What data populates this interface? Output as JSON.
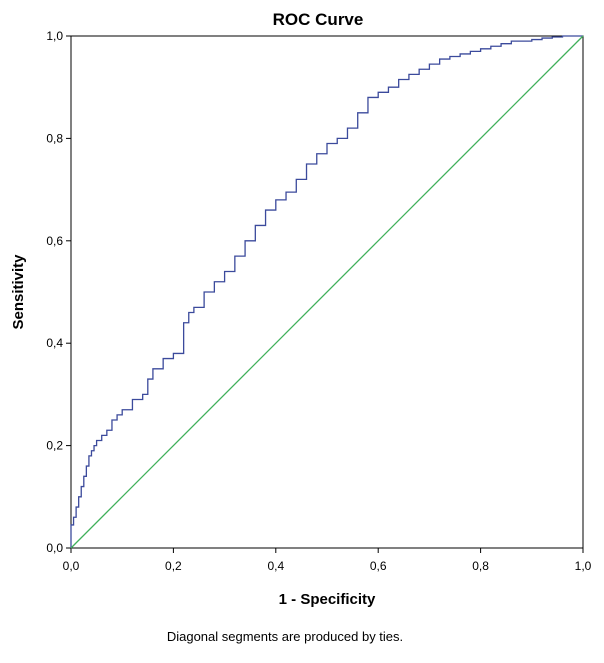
{
  "chart_data": {
    "type": "line",
    "title": "ROC Curve",
    "xlabel": "1 - Specificity",
    "ylabel": "Sensitivity",
    "xlim": [
      0,
      1
    ],
    "ylim": [
      0,
      1
    ],
    "x_ticks": [
      "0,0",
      "0,2",
      "0,4",
      "0,6",
      "0,8",
      "1,0"
    ],
    "y_ticks": [
      "0,0",
      "0,2",
      "0,4",
      "0,6",
      "0,8",
      "1,0"
    ],
    "grid": false,
    "legend": "none",
    "footnote": "Diagonal segments are produced by ties.",
    "series": [
      {
        "role": "roc",
        "color": "#3b4a9c",
        "x": [
          0.0,
          0.0,
          0.005,
          0.01,
          0.015,
          0.02,
          0.025,
          0.03,
          0.035,
          0.04,
          0.045,
          0.05,
          0.06,
          0.07,
          0.08,
          0.09,
          0.1,
          0.12,
          0.14,
          0.15,
          0.16,
          0.18,
          0.2,
          0.22,
          0.23,
          0.24,
          0.26,
          0.28,
          0.3,
          0.32,
          0.34,
          0.36,
          0.38,
          0.4,
          0.42,
          0.44,
          0.46,
          0.48,
          0.5,
          0.52,
          0.54,
          0.56,
          0.58,
          0.6,
          0.62,
          0.64,
          0.66,
          0.68,
          0.7,
          0.72,
          0.74,
          0.76,
          0.78,
          0.8,
          0.82,
          0.84,
          0.86,
          0.88,
          0.9,
          0.92,
          0.94,
          0.96,
          0.98,
          1.0
        ],
        "y": [
          0.0,
          0.045,
          0.06,
          0.08,
          0.1,
          0.12,
          0.14,
          0.16,
          0.18,
          0.19,
          0.2,
          0.21,
          0.22,
          0.23,
          0.25,
          0.26,
          0.27,
          0.29,
          0.3,
          0.33,
          0.35,
          0.37,
          0.38,
          0.44,
          0.46,
          0.47,
          0.5,
          0.52,
          0.54,
          0.57,
          0.6,
          0.63,
          0.66,
          0.68,
          0.695,
          0.72,
          0.75,
          0.77,
          0.79,
          0.8,
          0.82,
          0.85,
          0.88,
          0.89,
          0.9,
          0.915,
          0.925,
          0.935,
          0.945,
          0.955,
          0.96,
          0.965,
          0.97,
          0.975,
          0.98,
          0.985,
          0.99,
          0.99,
          0.993,
          0.996,
          0.998,
          1.0,
          1.0,
          1.0
        ]
      },
      {
        "role": "reference",
        "color": "#3fb05a",
        "x": [
          0.0,
          1.0
        ],
        "y": [
          0.0,
          1.0
        ]
      }
    ]
  }
}
